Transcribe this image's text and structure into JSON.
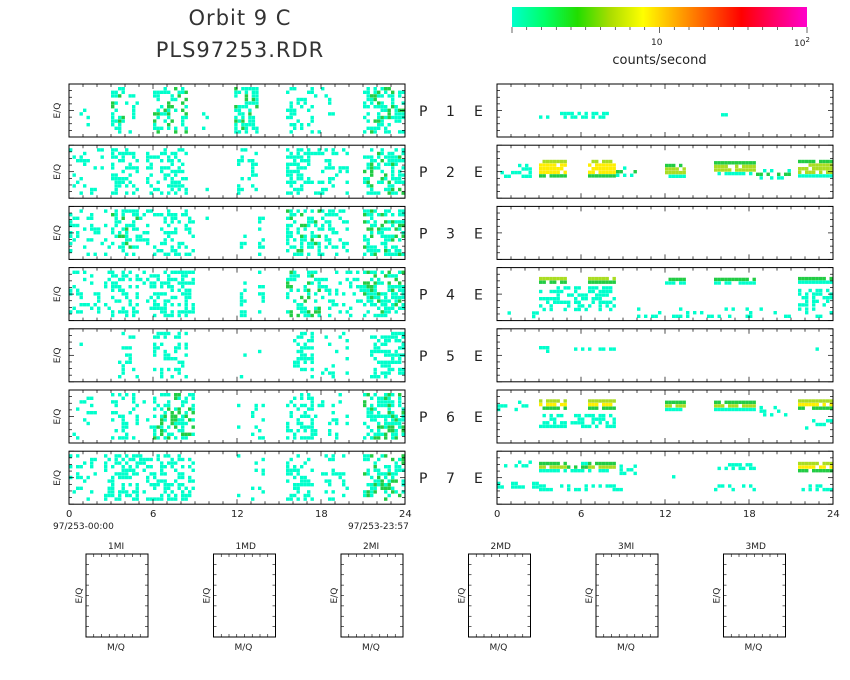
{
  "header": {
    "title_line1": "Orbit 9 C",
    "title_line2": "PLS97253.RDR"
  },
  "colorbar": {
    "label": "counts/second",
    "tick1": "10",
    "tick2_base": "10",
    "tick2_exp": "2",
    "gradient": [
      "#00ffcc",
      "#00ff66",
      "#22dd00",
      "#aadd00",
      "#ffff00",
      "#ffaa00",
      "#ff5500",
      "#ff0000",
      "#ff0066",
      "#ff00cc"
    ]
  },
  "colors": {
    "frame": "#000000",
    "low": "#00ffcc",
    "mid": "#22cc44",
    "midhigh": "#aadd22",
    "high": "#ffee00",
    "peak": "#ffaa00"
  },
  "chart_data": {
    "type": "heatmap",
    "xlabel_ticks": [
      "0",
      "6",
      "12",
      "18",
      "24"
    ],
    "time_start": "97/253-00:00",
    "time_end": "97/253-23:57",
    "ylabel": "E/Q",
    "x_range_hours": [
      0,
      24
    ],
    "row_labels": [
      {
        "p": "P",
        "n": "1",
        "e": "E"
      },
      {
        "p": "P",
        "n": "2",
        "e": "E"
      },
      {
        "p": "P",
        "n": "3",
        "e": "E"
      },
      {
        "p": "P",
        "n": "4",
        "e": "E"
      },
      {
        "p": "P",
        "n": "5",
        "e": "E"
      },
      {
        "p": "P",
        "n": "6",
        "e": "E"
      },
      {
        "p": "P",
        "n": "7",
        "e": "E"
      }
    ],
    "left_activity": [
      [
        [
          0.5,
          1.5,
          0.3
        ],
        [
          3,
          4,
          0.9
        ],
        [
          4,
          5,
          0.3
        ],
        [
          6,
          8.5,
          0.9
        ],
        [
          9.5,
          10,
          0.1
        ],
        [
          11.8,
          13.5,
          0.9
        ],
        [
          15.5,
          17.5,
          0.7
        ],
        [
          17.5,
          19,
          0.2
        ],
        [
          21,
          24,
          0.9
        ]
      ],
      [
        [
          0,
          2.5,
          0.4
        ],
        [
          3,
          5,
          0.8
        ],
        [
          5.5,
          6.5,
          0.3
        ],
        [
          6.5,
          8.5,
          0.8
        ],
        [
          9.5,
          10,
          0.1
        ],
        [
          12,
          13.5,
          0.6
        ],
        [
          15.5,
          17,
          0.8
        ],
        [
          17,
          20,
          0.5
        ],
        [
          21,
          24,
          1.0
        ]
      ],
      [
        [
          0,
          3,
          0.4
        ],
        [
          3,
          5,
          0.9
        ],
        [
          5,
          6.5,
          0.5
        ],
        [
          6.5,
          9,
          0.7
        ],
        [
          9.5,
          10,
          0.1
        ],
        [
          12.2,
          12.6,
          0.6
        ],
        [
          13.5,
          14,
          0.5
        ],
        [
          15.5,
          18,
          0.9
        ],
        [
          18,
          20,
          0.5
        ],
        [
          21,
          24,
          1.0
        ]
      ],
      [
        [
          0,
          3,
          0.4
        ],
        [
          3,
          5,
          0.8
        ],
        [
          5,
          6,
          0.3
        ],
        [
          6,
          9,
          0.8
        ],
        [
          12.2,
          12.6,
          0.4
        ],
        [
          13.5,
          14,
          0.6
        ],
        [
          15.5,
          18,
          0.9
        ],
        [
          18,
          21,
          0.4
        ],
        [
          21,
          24,
          1.0
        ]
      ],
      [
        [
          0.5,
          1,
          0.1
        ],
        [
          3.5,
          5,
          0.4
        ],
        [
          6,
          8.5,
          0.6
        ],
        [
          12.2,
          12.6,
          0.2
        ],
        [
          13.5,
          14,
          0.2
        ],
        [
          16,
          17.5,
          0.6
        ],
        [
          18,
          20,
          0.3
        ],
        [
          21.5,
          24,
          0.8
        ]
      ],
      [
        [
          0,
          2,
          0.3
        ],
        [
          3,
          5,
          0.7
        ],
        [
          5,
          6,
          0.3
        ],
        [
          6,
          9,
          0.9
        ],
        [
          12,
          12.5,
          0.2
        ],
        [
          13,
          14,
          0.4
        ],
        [
          15.5,
          17.5,
          0.7
        ],
        [
          17.5,
          20,
          0.4
        ],
        [
          21,
          24,
          1.0
        ]
      ],
      [
        [
          0,
          2,
          0.4
        ],
        [
          2.5,
          5,
          0.8
        ],
        [
          5,
          6,
          0.6
        ],
        [
          6,
          9,
          0.8
        ],
        [
          12,
          12.5,
          0.3
        ],
        [
          13,
          14,
          0.4
        ],
        [
          15.5,
          17.5,
          0.8
        ],
        [
          18,
          20,
          0.5
        ],
        [
          21,
          24,
          1.0
        ]
      ]
    ],
    "right_bands": [
      [
        {
          "x0": 3,
          "x1": 4,
          "d": 0.5,
          "y": 0.6,
          "t": 0.15,
          "c": 0
        },
        {
          "x0": 4.5,
          "x1": 8,
          "d": 0.7,
          "y": 0.6,
          "t": 0.15,
          "c": 0
        },
        {
          "x0": 16,
          "x1": 16.5,
          "d": 0.5,
          "y": 0.6,
          "t": 0.1,
          "c": 0
        },
        {
          "x0": 22.5,
          "x1": 23,
          "d": 0.5,
          "y": 0.6,
          "t": 0.1,
          "c": 0
        }
      ],
      [
        {
          "x0": 0,
          "x1": 2.5,
          "d": 0.5,
          "y": 0.5,
          "t": 0.3,
          "c": 0
        },
        {
          "x0": 3,
          "x1": 5,
          "d": 1.0,
          "y": 0.45,
          "t": 0.35,
          "c": 3
        },
        {
          "x0": 6.5,
          "x1": 8.5,
          "d": 1.0,
          "y": 0.45,
          "t": 0.35,
          "c": 3
        },
        {
          "x0": 8.5,
          "x1": 10,
          "d": 0.5,
          "y": 0.5,
          "t": 0.2,
          "c": 1
        },
        {
          "x0": 12,
          "x1": 13.5,
          "d": 1.0,
          "y": 0.5,
          "t": 0.3,
          "c": 2
        },
        {
          "x0": 15.5,
          "x1": 18.5,
          "d": 1.0,
          "y": 0.45,
          "t": 0.3,
          "c": 2
        },
        {
          "x0": 18.5,
          "x1": 21,
          "d": 0.6,
          "y": 0.55,
          "t": 0.2,
          "c": 1
        },
        {
          "x0": 21.5,
          "x1": 24,
          "d": 1.0,
          "y": 0.45,
          "t": 0.35,
          "c": 2
        }
      ],
      [],
      [
        {
          "x0": 0,
          "x1": 3,
          "d": 0.2,
          "y": 0.9,
          "t": 0.15,
          "c": 0
        },
        {
          "x0": 3,
          "x1": 5,
          "d": 1.0,
          "y": 0.25,
          "t": 0.15,
          "c": 3
        },
        {
          "x0": 6.5,
          "x1": 8.5,
          "d": 1.0,
          "y": 0.25,
          "t": 0.15,
          "c": 3
        },
        {
          "x0": 3,
          "x1": 8.5,
          "d": 0.6,
          "y": 0.6,
          "t": 0.5,
          "c": 0
        },
        {
          "x0": 12,
          "x1": 13.5,
          "d": 1.0,
          "y": 0.25,
          "t": 0.12,
          "c": 2
        },
        {
          "x0": 15.5,
          "x1": 18.5,
          "d": 1.0,
          "y": 0.25,
          "t": 0.12,
          "c": 2
        },
        {
          "x0": 10,
          "x1": 24,
          "d": 0.25,
          "y": 0.85,
          "t": 0.2,
          "c": 0
        },
        {
          "x0": 21.5,
          "x1": 24,
          "d": 1.0,
          "y": 0.25,
          "t": 0.15,
          "c": 2
        },
        {
          "x0": 21.5,
          "x1": 24,
          "d": 0.6,
          "y": 0.6,
          "t": 0.4,
          "c": 0
        }
      ],
      [
        {
          "x0": 3,
          "x1": 4,
          "d": 0.6,
          "y": 0.4,
          "t": 0.15,
          "c": 0
        },
        {
          "x0": 5.5,
          "x1": 8.5,
          "d": 0.6,
          "y": 0.4,
          "t": 0.1,
          "c": 0
        },
        {
          "x0": 9.5,
          "x1": 10,
          "d": 0.5,
          "y": 0.55,
          "t": 0.1,
          "c": 0
        },
        {
          "x0": 16,
          "x1": 16.5,
          "d": 0.5,
          "y": 0.4,
          "t": 0.1,
          "c": 0
        },
        {
          "x0": 22.5,
          "x1": 23,
          "d": 0.5,
          "y": 0.4,
          "t": 0.1,
          "c": 0
        }
      ],
      [
        {
          "x0": 0,
          "x1": 2.5,
          "d": 0.4,
          "y": 0.3,
          "t": 0.2,
          "c": 0
        },
        {
          "x0": 3,
          "x1": 5,
          "d": 1.0,
          "y": 0.3,
          "t": 0.25,
          "c": 3
        },
        {
          "x0": 6.5,
          "x1": 8.5,
          "d": 1.0,
          "y": 0.3,
          "t": 0.25,
          "c": 3
        },
        {
          "x0": 3,
          "x1": 8.5,
          "d": 0.5,
          "y": 0.6,
          "t": 0.3,
          "c": 0
        },
        {
          "x0": 12,
          "x1": 13.5,
          "d": 1.0,
          "y": 0.3,
          "t": 0.2,
          "c": 2
        },
        {
          "x0": 15.5,
          "x1": 18.5,
          "d": 1.0,
          "y": 0.3,
          "t": 0.2,
          "c": 2
        },
        {
          "x0": 18.5,
          "x1": 21,
          "d": 0.3,
          "y": 0.4,
          "t": 0.2,
          "c": 0
        },
        {
          "x0": 21.5,
          "x1": 24,
          "d": 1.0,
          "y": 0.3,
          "t": 0.25,
          "c": 3
        },
        {
          "x0": 22,
          "x1": 24,
          "d": 0.4,
          "y": 0.65,
          "t": 0.2,
          "c": 0
        }
      ],
      [
        {
          "x0": 0,
          "x1": 2.5,
          "d": 0.5,
          "y": 0.25,
          "t": 0.15,
          "c": 0
        },
        {
          "x0": 0,
          "x1": 3,
          "d": 0.5,
          "y": 0.65,
          "t": 0.15,
          "c": 0
        },
        {
          "x0": 3,
          "x1": 5,
          "d": 1.0,
          "y": 0.3,
          "t": 0.2,
          "c": 2
        },
        {
          "x0": 5,
          "x1": 6.5,
          "d": 0.8,
          "y": 0.3,
          "t": 0.2,
          "c": 1
        },
        {
          "x0": 6.5,
          "x1": 8.5,
          "d": 1.0,
          "y": 0.3,
          "t": 0.2,
          "c": 2
        },
        {
          "x0": 8.5,
          "x1": 10,
          "d": 0.6,
          "y": 0.35,
          "t": 0.2,
          "c": 0
        },
        {
          "x0": 3,
          "x1": 9,
          "d": 0.5,
          "y": 0.7,
          "t": 0.15,
          "c": 0
        },
        {
          "x0": 12.5,
          "x1": 13,
          "d": 0.5,
          "y": 0.5,
          "t": 0.1,
          "c": 0
        },
        {
          "x0": 15.5,
          "x1": 18.5,
          "d": 0.7,
          "y": 0.3,
          "t": 0.15,
          "c": 0
        },
        {
          "x0": 15.5,
          "x1": 18.5,
          "d": 0.5,
          "y": 0.7,
          "t": 0.15,
          "c": 0
        },
        {
          "x0": 21.5,
          "x1": 24,
          "d": 1.0,
          "y": 0.3,
          "t": 0.2,
          "c": 3
        },
        {
          "x0": 21.5,
          "x1": 24,
          "d": 0.5,
          "y": 0.7,
          "t": 0.15,
          "c": 0
        }
      ]
    ],
    "small_panels": [
      {
        "title": "1MI",
        "ylabel": "E/Q",
        "xlabel": "M/Q"
      },
      {
        "title": "1MD",
        "ylabel": "E/Q",
        "xlabel": "M/Q"
      },
      {
        "title": "2MI",
        "ylabel": "E/Q",
        "xlabel": "M/Q"
      },
      {
        "title": "2MD",
        "ylabel": "E/Q",
        "xlabel": "M/Q"
      },
      {
        "title": "3MI",
        "ylabel": "E/Q",
        "xlabel": "M/Q"
      },
      {
        "title": "3MD",
        "ylabel": "E/Q",
        "xlabel": "M/Q"
      }
    ]
  }
}
